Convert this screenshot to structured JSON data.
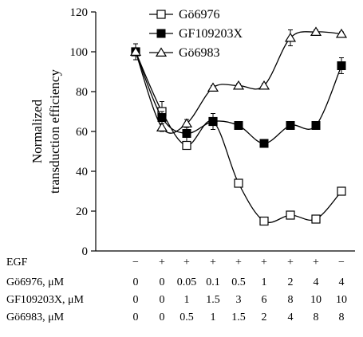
{
  "chart_data": {
    "type": "line",
    "ylabel_lines": [
      "Normalized",
      "transduction efficiency"
    ],
    "ylim": [
      0,
      120
    ],
    "yticks": [
      "0",
      "20",
      "40",
      "60",
      "80",
      "100",
      "120"
    ],
    "legend_position": "top",
    "series": [
      {
        "name": "Gö6976",
        "marker": "open-square",
        "values": [
          100,
          70,
          53,
          65,
          34,
          15,
          18,
          16,
          30
        ],
        "err": [
          2,
          5,
          2,
          2,
          1,
          1,
          2,
          1,
          1
        ]
      },
      {
        "name": "GF109203X",
        "marker": "filled-square",
        "values": [
          100,
          67,
          59,
          65,
          63,
          54,
          63,
          63,
          93
        ],
        "err": [
          4,
          3,
          4,
          4,
          1,
          1,
          1,
          1,
          4
        ]
      },
      {
        "name": "Gö6983",
        "marker": "open-triangle",
        "values": [
          100,
          62,
          64,
          82,
          83,
          83,
          107,
          110,
          109
        ],
        "err": [
          2,
          2,
          2,
          1,
          1,
          1,
          4,
          1,
          1
        ]
      }
    ],
    "table": [
      {
        "label": "EGF",
        "values": [
          "−",
          "+",
          "+",
          "+",
          "+",
          "+",
          "+",
          "+",
          "−"
        ]
      },
      {
        "label": "Gö6976, μM",
        "values": [
          "0",
          "0",
          "0.05",
          "0.1",
          "0.5",
          "1",
          "2",
          "4",
          "4"
        ]
      },
      {
        "label": "GF109203X, μM",
        "values": [
          "0",
          "0",
          "1",
          "1.5",
          "3",
          "6",
          "8",
          "10",
          "10"
        ]
      },
      {
        "label": "Gö6983, μM",
        "values": [
          "0",
          "0",
          "0.5",
          "1",
          "1.5",
          "2",
          "4",
          "8",
          "8"
        ]
      }
    ]
  }
}
